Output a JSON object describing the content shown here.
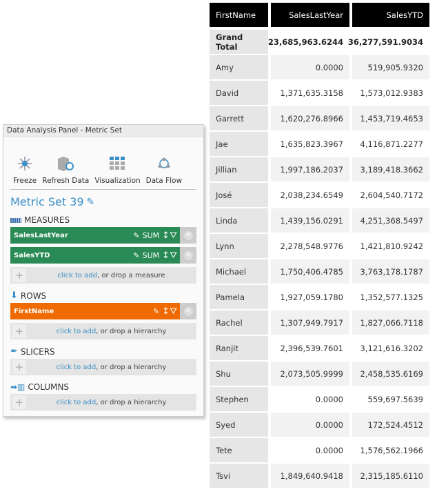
{
  "panel": {
    "title": "Data Analysis Panel - Metric Set",
    "tools": [
      {
        "label": "Freeze",
        "icon": "freeze-icon"
      },
      {
        "label": "Refresh Data",
        "icon": "refresh-data-icon"
      },
      {
        "label": "Visualization",
        "icon": "visualization-icon"
      },
      {
        "label": "Data Flow",
        "icon": "data-flow-icon"
      }
    ],
    "metric_set_title": "Metric Set 39",
    "measures_label": "MEASURES",
    "measures": [
      {
        "name": "SalesLastYear",
        "agg": "SUM"
      },
      {
        "name": "SalesYTD",
        "agg": "SUM"
      }
    ],
    "measure_drop": {
      "link": "click to add",
      "rest": ", or drop a measure"
    },
    "rows_label": "ROWS",
    "rows": [
      {
        "name": "FirstName"
      }
    ],
    "slicers_label": "SLICERS",
    "columns_label": "COLUMNS",
    "hier_drop": {
      "link": "click to add",
      "rest": ", or drop a hierarchy"
    },
    "colors": {
      "measure": "#2a8a55",
      "row": "#ef6a00",
      "accent": "#3a8fc8"
    }
  },
  "table": {
    "headers": [
      "FirstName",
      "SalesLastYear",
      "SalesYTD"
    ],
    "grand_total": [
      "Grand Total",
      "23,685,963.6244",
      "36,277,591.9034"
    ],
    "rows": [
      [
        "Amy",
        "0.0000",
        "519,905.9320"
      ],
      [
        "David",
        "1,371,635.3158",
        "1,573,012.9383"
      ],
      [
        "Garrett",
        "1,620,276.8966",
        "1,453,719.4653"
      ],
      [
        "Jae",
        "1,635,823.3967",
        "4,116,871.2277"
      ],
      [
        "Jillian",
        "1,997,186.2037",
        "3,189,418.3662"
      ],
      [
        "José",
        "2,038,234.6549",
        "2,604,540.7172"
      ],
      [
        "Linda",
        "1,439,156.0291",
        "4,251,368.5497"
      ],
      [
        "Lynn",
        "2,278,548.9776",
        "1,421,810.9242"
      ],
      [
        "Michael",
        "1,750,406.4785",
        "3,763,178.1787"
      ],
      [
        "Pamela",
        "1,927,059.1780",
        "1,352,577.1325"
      ],
      [
        "Rachel",
        "1,307,949.7917",
        "1,827,066.7118"
      ],
      [
        "Ranjit",
        "2,396,539.7601",
        "3,121,616.3202"
      ],
      [
        "Shu",
        "2,073,505.9999",
        "2,458,535.6169"
      ],
      [
        "Stephen",
        "0.0000",
        "559,697.5639"
      ],
      [
        "Syed",
        "0.0000",
        "172,524.4512"
      ],
      [
        "Tete",
        "0.0000",
        "1,576,562.1966"
      ],
      [
        "Tsvi",
        "1,849,640.9418",
        "2,315,185.6110"
      ]
    ]
  }
}
